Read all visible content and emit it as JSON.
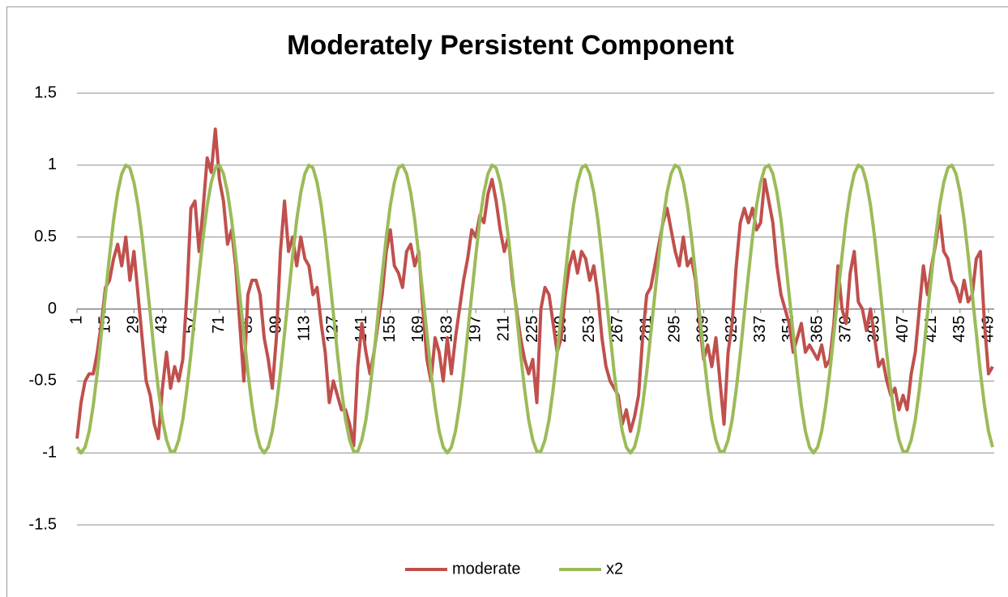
{
  "chart_data": {
    "type": "line",
    "title": "Moderately Persistent Component",
    "x": [
      1,
      3,
      5,
      7,
      9,
      11,
      13,
      15,
      17,
      19,
      21,
      23,
      25,
      27,
      29,
      31,
      33,
      35,
      37,
      39,
      41,
      43,
      45,
      47,
      49,
      51,
      53,
      55,
      57,
      59,
      61,
      63,
      65,
      67,
      69,
      71,
      73,
      75,
      77,
      79,
      81,
      83,
      85,
      87,
      89,
      91,
      93,
      95,
      97,
      99,
      101,
      103,
      105,
      107,
      109,
      111,
      113,
      115,
      117,
      119,
      121,
      123,
      125,
      127,
      129,
      131,
      133,
      135,
      137,
      139,
      141,
      143,
      145,
      147,
      149,
      151,
      153,
      155,
      157,
      159,
      161,
      163,
      165,
      167,
      169,
      171,
      173,
      175,
      177,
      179,
      181,
      183,
      185,
      187,
      189,
      191,
      193,
      195,
      197,
      199,
      201,
      203,
      205,
      207,
      209,
      211,
      213,
      215,
      217,
      219,
      221,
      223,
      225,
      227,
      229,
      231,
      233,
      235,
      237,
      239,
      241,
      243,
      245,
      247,
      249,
      251,
      253,
      255,
      257,
      259,
      261,
      263,
      265,
      267,
      269,
      271,
      273,
      275,
      277,
      279,
      281,
      283,
      285,
      287,
      289,
      291,
      293,
      295,
      297,
      299,
      301,
      303,
      305,
      307,
      309,
      311,
      313,
      315,
      317,
      319,
      321,
      323,
      325,
      327,
      329,
      331,
      333,
      335,
      337,
      339,
      341,
      343,
      345,
      347,
      349,
      351,
      353,
      355,
      357,
      359,
      361,
      363,
      365,
      367,
      369,
      371,
      373,
      375,
      377,
      379,
      381,
      383,
      385,
      387,
      389,
      391,
      393,
      395,
      397,
      399,
      401,
      403,
      405,
      407,
      409,
      411,
      413,
      415,
      417,
      419,
      421,
      423,
      425,
      427,
      429,
      431,
      433,
      435,
      437,
      439,
      441,
      443,
      445,
      447,
      449,
      451
    ],
    "series": [
      {
        "name": "moderate",
        "color": "#c0504d",
        "values": [
          -0.9,
          -0.65,
          -0.5,
          -0.45,
          -0.45,
          -0.3,
          -0.1,
          0.15,
          0.2,
          0.35,
          0.45,
          0.3,
          0.5,
          0.2,
          0.4,
          0.1,
          -0.2,
          -0.5,
          -0.6,
          -0.8,
          -0.9,
          -0.55,
          -0.3,
          -0.55,
          -0.4,
          -0.5,
          -0.35,
          0.1,
          0.7,
          0.75,
          0.4,
          0.7,
          1.05,
          0.95,
          1.25,
          0.9,
          0.75,
          0.45,
          0.55,
          0.3,
          -0.1,
          -0.5,
          0.1,
          0.2,
          0.2,
          0.1,
          -0.2,
          -0.35,
          -0.55,
          -0.2,
          0.4,
          0.75,
          0.4,
          0.5,
          0.3,
          0.5,
          0.35,
          0.3,
          0.1,
          0.15,
          -0.1,
          -0.3,
          -0.65,
          -0.5,
          -0.6,
          -0.7,
          -0.7,
          -0.8,
          -0.95,
          -0.4,
          -0.1,
          -0.3,
          -0.45,
          -0.3,
          -0.1,
          0.1,
          0.4,
          0.55,
          0.3,
          0.25,
          0.15,
          0.4,
          0.45,
          0.3,
          0.4,
          0.0,
          -0.35,
          -0.5,
          -0.2,
          -0.3,
          -0.5,
          -0.2,
          -0.45,
          -0.2,
          0.0,
          0.2,
          0.35,
          0.55,
          0.5,
          0.65,
          0.6,
          0.8,
          0.9,
          0.75,
          0.55,
          0.4,
          0.5,
          0.2,
          0.0,
          -0.2,
          -0.35,
          -0.45,
          -0.35,
          -0.65,
          0.0,
          0.15,
          0.1,
          -0.1,
          -0.3,
          -0.2,
          0.1,
          0.3,
          0.4,
          0.25,
          0.4,
          0.35,
          0.2,
          0.3,
          0.1,
          -0.2,
          -0.4,
          -0.5,
          -0.55,
          -0.6,
          -0.8,
          -0.7,
          -0.85,
          -0.75,
          -0.6,
          -0.2,
          0.1,
          0.15,
          0.3,
          0.45,
          0.6,
          0.7,
          0.55,
          0.4,
          0.3,
          0.5,
          0.3,
          0.35,
          0.2,
          -0.1,
          -0.35,
          -0.25,
          -0.4,
          -0.2,
          -0.5,
          -0.8,
          -0.3,
          -0.1,
          0.3,
          0.6,
          0.7,
          0.6,
          0.7,
          0.55,
          0.6,
          0.9,
          0.75,
          0.6,
          0.3,
          0.1,
          0.0,
          -0.1,
          -0.3,
          -0.2,
          -0.1,
          -0.3,
          -0.25,
          -0.3,
          -0.35,
          -0.25,
          -0.4,
          -0.35,
          -0.1,
          0.3,
          0.0,
          -0.1,
          0.25,
          0.4,
          0.05,
          0.0,
          -0.15,
          0.0,
          -0.2,
          -0.4,
          -0.35,
          -0.5,
          -0.6,
          -0.55,
          -0.7,
          -0.6,
          -0.7,
          -0.45,
          -0.3,
          0.0,
          0.3,
          0.1,
          0.3,
          0.45,
          0.65,
          0.4,
          0.35,
          0.2,
          0.15,
          0.05,
          0.2,
          0.05,
          0.1,
          0.35,
          0.4,
          -0.1,
          -0.45,
          -0.4
        ]
      },
      {
        "name": "x2",
        "color": "#9bbb59",
        "values": [
          -0.96,
          -1,
          -0.96,
          -0.85,
          -0.67,
          -0.44,
          -0.17,
          0.1,
          0.37,
          0.62,
          0.81,
          0.94,
          1,
          0.98,
          0.88,
          0.72,
          0.5,
          0.24,
          -0.03,
          -0.31,
          -0.56,
          -0.77,
          -0.91,
          -0.99,
          -0.99,
          -0.91,
          -0.77,
          -0.56,
          -0.31,
          -0.03,
          0.24,
          0.5,
          0.72,
          0.88,
          0.98,
          1,
          0.94,
          0.81,
          0.62,
          0.37,
          0.1,
          -0.17,
          -0.44,
          -0.67,
          -0.85,
          -0.96,
          -1,
          -0.96,
          -0.85,
          -0.67,
          -0.44,
          -0.17,
          0.1,
          0.37,
          0.62,
          0.81,
          0.94,
          1,
          0.98,
          0.88,
          0.72,
          0.5,
          0.24,
          -0.03,
          -0.31,
          -0.56,
          -0.77,
          -0.91,
          -0.99,
          -0.99,
          -0.91,
          -0.77,
          -0.56,
          -0.31,
          -0.03,
          0.24,
          0.5,
          0.72,
          0.88,
          0.98,
          1,
          0.94,
          0.81,
          0.62,
          0.37,
          0.1,
          -0.17,
          -0.44,
          -0.67,
          -0.85,
          -0.96,
          -1,
          -0.96,
          -0.85,
          -0.67,
          -0.44,
          -0.17,
          0.1,
          0.37,
          0.62,
          0.81,
          0.94,
          1,
          0.98,
          0.88,
          0.72,
          0.5,
          0.24,
          -0.03,
          -0.31,
          -0.56,
          -0.77,
          -0.91,
          -0.99,
          -0.99,
          -0.91,
          -0.77,
          -0.56,
          -0.31,
          -0.03,
          0.24,
          0.5,
          0.72,
          0.88,
          0.98,
          1,
          0.94,
          0.81,
          0.62,
          0.37,
          0.1,
          -0.17,
          -0.44,
          -0.67,
          -0.85,
          -0.96,
          -1,
          -0.96,
          -0.85,
          -0.67,
          -0.44,
          -0.17,
          0.1,
          0.37,
          0.62,
          0.81,
          0.94,
          1,
          0.98,
          0.88,
          0.72,
          0.5,
          0.24,
          -0.03,
          -0.31,
          -0.56,
          -0.77,
          -0.91,
          -0.99,
          -0.99,
          -0.91,
          -0.77,
          -0.56,
          -0.31,
          -0.03,
          0.24,
          0.5,
          0.72,
          0.88,
          0.98,
          1,
          0.94,
          0.81,
          0.62,
          0.37,
          0.1,
          -0.17,
          -0.44,
          -0.67,
          -0.85,
          -0.96,
          -1,
          -0.96,
          -0.85,
          -0.67,
          -0.44,
          -0.17,
          0.1,
          0.37,
          0.62,
          0.81,
          0.94,
          1,
          0.98,
          0.88,
          0.72,
          0.5,
          0.24,
          -0.03,
          -0.31,
          -0.56,
          -0.77,
          -0.91,
          -0.99,
          -0.99,
          -0.91,
          -0.77,
          -0.56,
          -0.31,
          -0.03,
          0.24,
          0.5,
          0.72,
          0.88,
          0.98,
          1,
          0.94,
          0.81,
          0.62,
          0.37,
          0.1,
          -0.17,
          -0.44,
          -0.67,
          -0.85,
          -0.96
        ]
      }
    ],
    "xlim": [
      1,
      451
    ],
    "xticks": [
      1,
      15,
      29,
      43,
      57,
      71,
      85,
      99,
      113,
      127,
      141,
      155,
      169,
      183,
      197,
      211,
      225,
      239,
      253,
      267,
      281,
      295,
      309,
      323,
      337,
      351,
      365,
      379,
      393,
      407,
      421,
      435,
      449
    ],
    "ylim": [
      -1.5,
      1.5
    ],
    "yticks": [
      -1.5,
      -1,
      -0.5,
      0,
      0.5,
      1,
      1.5
    ],
    "grid": true,
    "legend": "bottom"
  }
}
